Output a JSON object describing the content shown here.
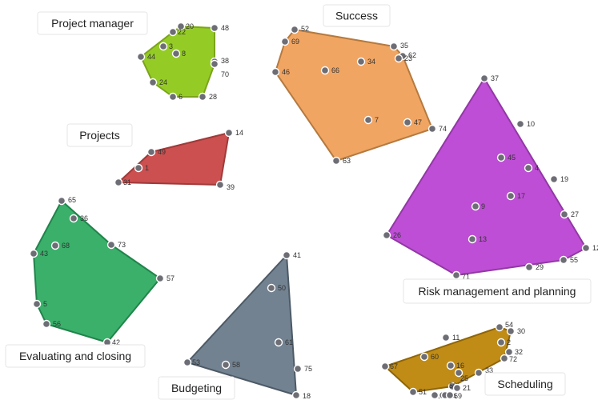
{
  "clusters": [
    {
      "label": "Project manager",
      "color": "#8ec919",
      "stroke": "#7aa419"
    },
    {
      "label": "Success",
      "color": "#f0a05a",
      "stroke": "#b57a3f"
    },
    {
      "label": "Projects",
      "color": "#c94747",
      "stroke": "#9f3a3a"
    },
    {
      "label": "Risk management and planning",
      "color": "#bb44d3",
      "stroke": "#9238a5"
    },
    {
      "label": "Evaluating and closing",
      "color": "#2fac63",
      "stroke": "#21844b"
    },
    {
      "label": "Budgeting",
      "color": "#6b7b8b",
      "stroke": "#4d5a66"
    },
    {
      "label": "Scheduling",
      "color": "#bd860a",
      "stroke": "#8f6508"
    }
  ],
  "nodes": [
    {
      "id": "20",
      "cluster": 0
    },
    {
      "id": "22",
      "cluster": 0
    },
    {
      "id": "48",
      "cluster": 0
    },
    {
      "id": "3",
      "cluster": 0
    },
    {
      "id": "8",
      "cluster": 0
    },
    {
      "id": "44",
      "cluster": 0
    },
    {
      "id": "38",
      "cluster": 0
    },
    {
      "id": "70",
      "cluster": 0
    },
    {
      "id": "24",
      "cluster": 0
    },
    {
      "id": "6",
      "cluster": 0
    },
    {
      "id": "28",
      "cluster": 0
    },
    {
      "id": "52",
      "cluster": 1
    },
    {
      "id": "69",
      "cluster": 1
    },
    {
      "id": "35",
      "cluster": 1
    },
    {
      "id": "62",
      "cluster": 1
    },
    {
      "id": "23",
      "cluster": 1
    },
    {
      "id": "34",
      "cluster": 1
    },
    {
      "id": "46",
      "cluster": 1
    },
    {
      "id": "66",
      "cluster": 1
    },
    {
      "id": "7",
      "cluster": 1
    },
    {
      "id": "47",
      "cluster": 1
    },
    {
      "id": "74",
      "cluster": 1
    },
    {
      "id": "63",
      "cluster": 1
    },
    {
      "id": "14",
      "cluster": 2
    },
    {
      "id": "49",
      "cluster": 2
    },
    {
      "id": "1",
      "cluster": 2
    },
    {
      "id": "31",
      "cluster": 2
    },
    {
      "id": "39",
      "cluster": 2
    },
    {
      "id": "37",
      "cluster": 3
    },
    {
      "id": "10",
      "cluster": 3
    },
    {
      "id": "45",
      "cluster": 3
    },
    {
      "id": "4",
      "cluster": 3
    },
    {
      "id": "19",
      "cluster": 3
    },
    {
      "id": "17",
      "cluster": 3
    },
    {
      "id": "9",
      "cluster": 3
    },
    {
      "id": "27",
      "cluster": 3
    },
    {
      "id": "26",
      "cluster": 3
    },
    {
      "id": "13",
      "cluster": 3
    },
    {
      "id": "12",
      "cluster": 3
    },
    {
      "id": "55",
      "cluster": 3
    },
    {
      "id": "29",
      "cluster": 3
    },
    {
      "id": "71",
      "cluster": 3
    },
    {
      "id": "65",
      "cluster": 4
    },
    {
      "id": "36",
      "cluster": 4
    },
    {
      "id": "68",
      "cluster": 4
    },
    {
      "id": "73",
      "cluster": 4
    },
    {
      "id": "43",
      "cluster": 4
    },
    {
      "id": "57",
      "cluster": 4
    },
    {
      "id": "5",
      "cluster": 4
    },
    {
      "id": "56",
      "cluster": 4
    },
    {
      "id": "42",
      "cluster": 4
    },
    {
      "id": "41",
      "cluster": 5
    },
    {
      "id": "50",
      "cluster": 5
    },
    {
      "id": "61",
      "cluster": 5
    },
    {
      "id": "53",
      "cluster": 5
    },
    {
      "id": "58",
      "cluster": 5
    },
    {
      "id": "75",
      "cluster": 5
    },
    {
      "id": "18",
      "cluster": 5
    },
    {
      "id": "54",
      "cluster": 6
    },
    {
      "id": "30",
      "cluster": 6
    },
    {
      "id": "11",
      "cluster": 6
    },
    {
      "id": "2",
      "cluster": 6
    },
    {
      "id": "32",
      "cluster": 6
    },
    {
      "id": "60",
      "cluster": 6
    },
    {
      "id": "72",
      "cluster": 6
    },
    {
      "id": "67",
      "cluster": 6
    },
    {
      "id": "16",
      "cluster": 6
    },
    {
      "id": "25",
      "cluster": 6
    },
    {
      "id": "33",
      "cluster": 6
    },
    {
      "id": "59",
      "cluster": 6
    },
    {
      "id": "21",
      "cluster": 6
    },
    {
      "id": "51",
      "cluster": 6
    },
    {
      "id": "15",
      "cluster": 6
    },
    {
      "id": "40",
      "cluster": 6
    },
    {
      "id": "64",
      "cluster": 6
    },
    {
      "id": "69b",
      "label": "69",
      "cluster": 6
    }
  ]
}
